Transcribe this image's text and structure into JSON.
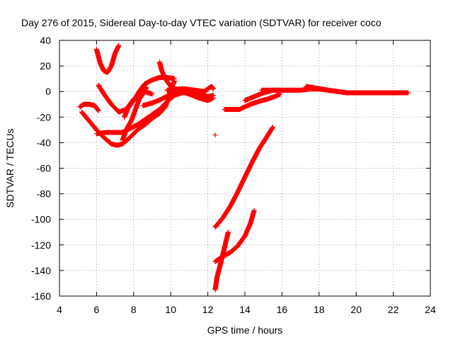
{
  "chart_data": {
    "type": "scatter",
    "title": "Day 276 of 2015, Sidereal Day-to-day VTEC variation (SDTVAR) for receiver coco",
    "xlabel": "GPS time / hours",
    "ylabel": "SDTVAR / TECUs",
    "xlim": [
      4,
      24
    ],
    "ylim": [
      -160,
      40
    ],
    "xticks": [
      "4",
      "6",
      "8",
      "10",
      "12",
      "14",
      "16",
      "18",
      "20",
      "22",
      "24"
    ],
    "yticks": [
      "40",
      "20",
      "0",
      "-20",
      "-40",
      "-60",
      "-80",
      "-100",
      "-120",
      "-140",
      "-160"
    ],
    "grid": true,
    "legend": "none",
    "marker": "+",
    "color": "#ff0000",
    "series": [
      {
        "points": [
          [
            5.1,
            -12
          ],
          [
            5.3,
            -10
          ],
          [
            5.6,
            -10
          ],
          [
            5.9,
            -11
          ],
          [
            6.1,
            -15
          ]
        ]
      },
      {
        "points": [
          [
            6.0,
            33
          ],
          [
            6.2,
            22
          ],
          [
            6.4,
            16
          ],
          [
            6.6,
            15
          ],
          [
            6.8,
            20
          ],
          [
            7.0,
            30
          ],
          [
            7.2,
            36
          ]
        ]
      },
      {
        "points": [
          [
            5.2,
            -16
          ],
          [
            5.6,
            -23
          ],
          [
            6.0,
            -30
          ],
          [
            6.4,
            -36
          ],
          [
            6.8,
            -41
          ],
          [
            7.1,
            -42
          ],
          [
            7.4,
            -41
          ],
          [
            7.8,
            -36
          ],
          [
            8.2,
            -30
          ],
          [
            8.6,
            -26
          ],
          [
            9.0,
            -21
          ],
          [
            9.4,
            -17
          ],
          [
            9.7,
            -12
          ],
          [
            9.9,
            -5
          ],
          [
            10.0,
            2
          ],
          [
            10.2,
            8
          ]
        ]
      },
      {
        "points": [
          [
            6.0,
            -33
          ],
          [
            6.5,
            -32
          ],
          [
            7.0,
            -32
          ],
          [
            7.4,
            -32
          ],
          [
            7.8,
            -29
          ],
          [
            8.2,
            -26
          ],
          [
            8.6,
            -22
          ],
          [
            9.0,
            -18
          ],
          [
            9.4,
            -14
          ],
          [
            9.8,
            -8
          ],
          [
            10.2,
            -3
          ],
          [
            10.6,
            -1
          ],
          [
            11.0,
            -1
          ]
        ]
      },
      {
        "points": [
          [
            7.5,
            -20
          ],
          [
            7.7,
            -13
          ],
          [
            8.0,
            -7
          ],
          [
            8.3,
            0
          ],
          [
            8.6,
            6
          ],
          [
            9.0,
            9
          ],
          [
            9.4,
            11
          ],
          [
            9.8,
            11
          ],
          [
            10.2,
            10
          ]
        ]
      },
      {
        "points": [
          [
            6.1,
            5
          ],
          [
            6.4,
            -2
          ],
          [
            6.8,
            -10
          ],
          [
            7.2,
            -16
          ],
          [
            7.6,
            -14
          ],
          [
            8.0,
            -6
          ],
          [
            8.4,
            -1
          ],
          [
            8.7,
            3
          ]
        ]
      },
      {
        "points": [
          [
            7.4,
            -38
          ],
          [
            7.6,
            -30
          ],
          [
            7.9,
            -22
          ],
          [
            8.1,
            -14
          ],
          [
            8.3,
            -6
          ],
          [
            8.6,
            0
          ],
          [
            9.0,
            -2
          ]
        ]
      },
      {
        "points": [
          [
            9.4,
            23
          ],
          [
            9.5,
            17
          ],
          [
            9.7,
            10
          ],
          [
            10.0,
            4
          ],
          [
            10.3,
            1
          ]
        ]
      },
      {
        "points": [
          [
            8.5,
            -11
          ],
          [
            9.0,
            -9
          ],
          [
            9.5,
            -6
          ],
          [
            10.0,
            -2
          ],
          [
            10.4,
            0
          ],
          [
            10.8,
            1
          ],
          [
            11.2,
            0
          ],
          [
            11.6,
            -2
          ],
          [
            12.0,
            -4
          ],
          [
            12.3,
            -3
          ]
        ]
      },
      {
        "points": [
          [
            9.8,
            1
          ],
          [
            10.3,
            2
          ],
          [
            10.8,
            2
          ],
          [
            11.3,
            1
          ],
          [
            11.8,
            0
          ],
          [
            12.0,
            2
          ],
          [
            12.2,
            4
          ],
          [
            12.3,
            2
          ]
        ]
      },
      {
        "points": [
          [
            10.5,
            0
          ],
          [
            11.0,
            -2
          ],
          [
            11.5,
            -5
          ],
          [
            12.0,
            -7
          ],
          [
            12.3,
            -5
          ]
        ]
      },
      {
        "points": [
          [
            12.4,
            -34
          ]
        ]
      },
      {
        "points": [
          [
            12.4,
            -106
          ],
          [
            12.8,
            -99
          ],
          [
            13.2,
            -90
          ],
          [
            13.6,
            -79
          ],
          [
            14.0,
            -67
          ],
          [
            14.4,
            -55
          ],
          [
            14.8,
            -44
          ],
          [
            15.2,
            -35
          ],
          [
            15.5,
            -28
          ]
        ]
      },
      {
        "points": [
          [
            12.4,
            -155
          ],
          [
            12.5,
            -145
          ],
          [
            12.7,
            -134
          ],
          [
            12.9,
            -122
          ],
          [
            13.1,
            -110
          ]
        ]
      },
      {
        "points": [
          [
            12.4,
            -133
          ],
          [
            12.8,
            -129
          ],
          [
            13.2,
            -126
          ],
          [
            13.6,
            -121
          ],
          [
            14.0,
            -113
          ],
          [
            14.3,
            -103
          ],
          [
            14.5,
            -93
          ]
        ]
      },
      {
        "points": [
          [
            12.9,
            -14
          ],
          [
            13.3,
            -14
          ],
          [
            13.7,
            -14
          ],
          [
            14.0,
            -12
          ],
          [
            14.3,
            -10
          ],
          [
            14.7,
            -8
          ],
          [
            15.2,
            -6
          ],
          [
            15.6,
            -4
          ],
          [
            15.9,
            -2
          ]
        ]
      },
      {
        "points": [
          [
            14.0,
            -7
          ],
          [
            14.5,
            -4
          ],
          [
            15.0,
            -1
          ],
          [
            15.5,
            1
          ],
          [
            16.0,
            1
          ]
        ]
      },
      {
        "points": [
          [
            14.9,
            1
          ],
          [
            15.5,
            1
          ],
          [
            16.0,
            1
          ],
          [
            16.5,
            1
          ],
          [
            17.0,
            1
          ],
          [
            17.5,
            2
          ],
          [
            18.0,
            2
          ],
          [
            18.5,
            1
          ],
          [
            19.0,
            0
          ],
          [
            19.5,
            -1
          ],
          [
            20.0,
            -1
          ],
          [
            20.5,
            -1
          ],
          [
            21.0,
            -1
          ],
          [
            21.5,
            -1
          ],
          [
            22.0,
            -1
          ],
          [
            22.5,
            -1
          ],
          [
            22.8,
            -1
          ]
        ]
      },
      {
        "points": [
          [
            17.3,
            4
          ],
          [
            17.7,
            3
          ],
          [
            18.1,
            2
          ],
          [
            18.5,
            1
          ],
          [
            19.0,
            0
          ]
        ]
      }
    ]
  }
}
